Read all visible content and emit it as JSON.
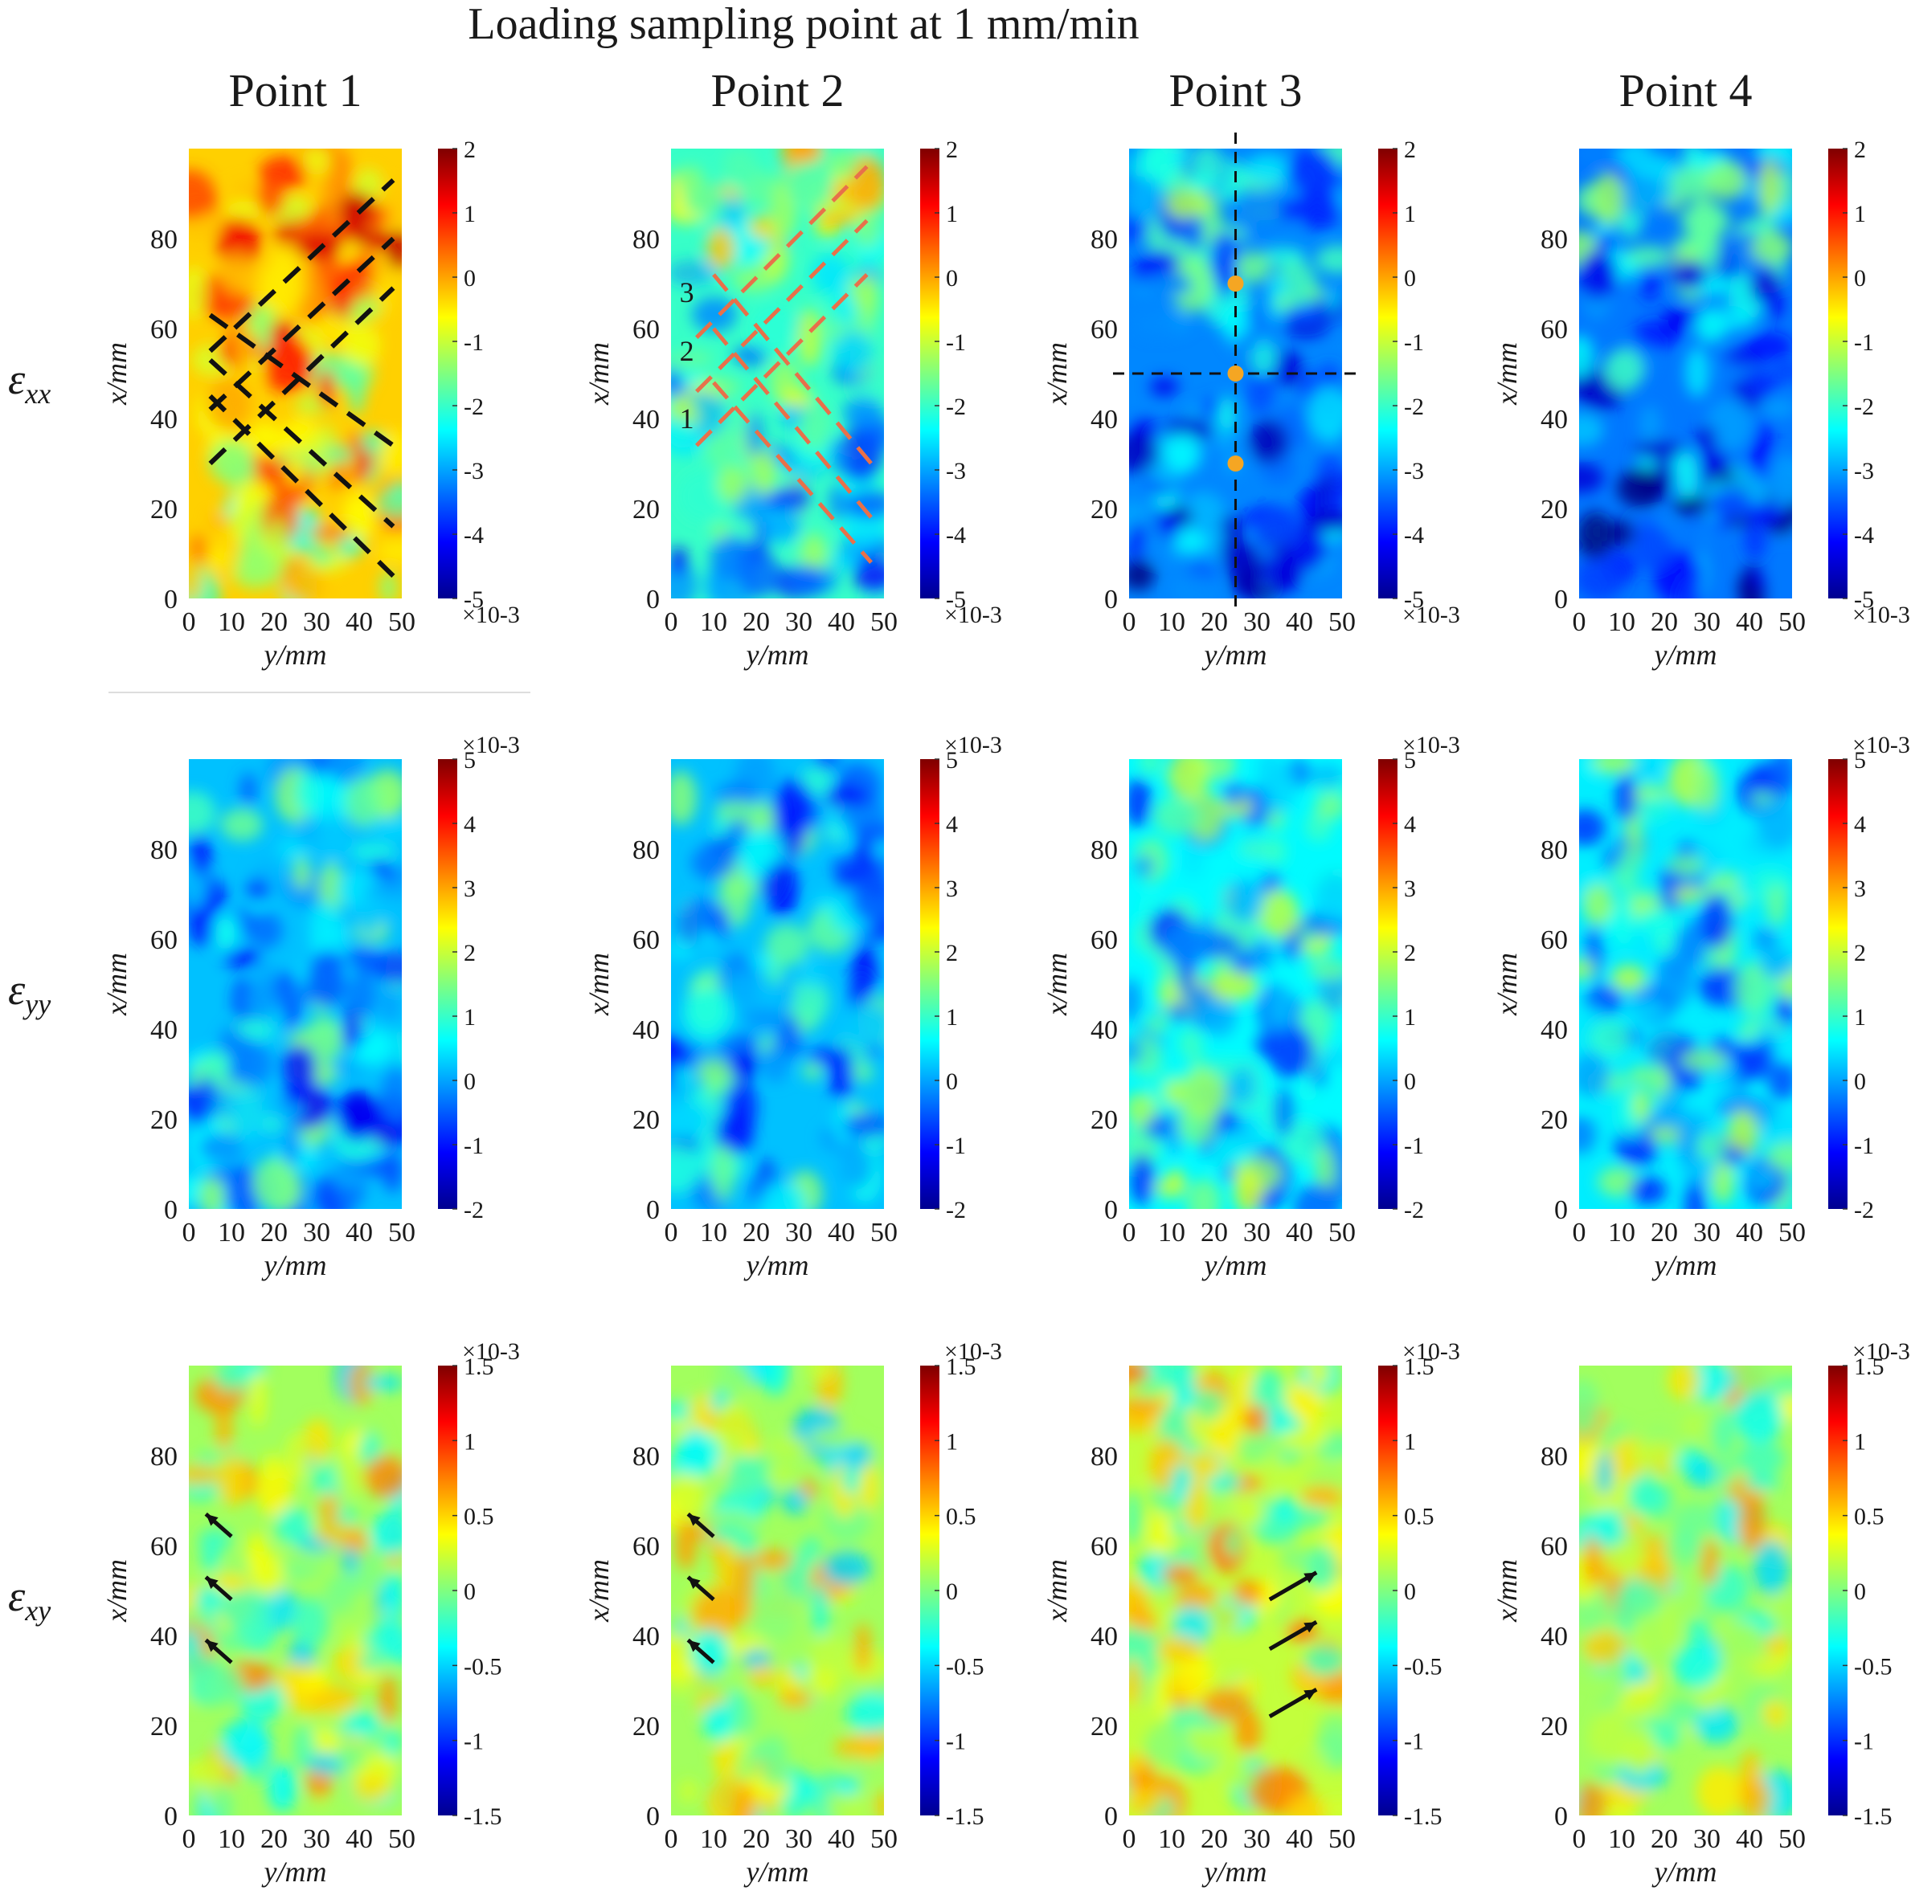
{
  "chart_data": {
    "type": "heatmap",
    "title": "Loading sampling point at 1 mm/min",
    "columns": [
      "Point 1",
      "Point 2",
      "Point 3",
      "Point 4"
    ],
    "xlabel": "y/mm",
    "ylabel": "x/mm",
    "x_ticks": [
      "0",
      "10",
      "20",
      "30",
      "40",
      "50"
    ],
    "y_ticks": [
      "0",
      "20",
      "40",
      "60",
      "80"
    ],
    "xlim": [
      0,
      50
    ],
    "ylim": [
      0,
      100
    ],
    "colorbar_scale": "×10-3",
    "rows": [
      {
        "label": "ε",
        "subscript": "xx",
        "colorbar_range": [
          -5,
          2
        ],
        "colorbar_ticks": [
          "2",
          "1",
          "0",
          "-1",
          "-2",
          "-3",
          "-4",
          "-5"
        ],
        "mean_strain": [
          -0.3,
          -2.0,
          -3.2,
          -3.3
        ]
      },
      {
        "label": "ε",
        "subscript": "yy",
        "colorbar_range": [
          -2,
          5
        ],
        "colorbar_ticks": [
          "5",
          "4",
          "3",
          "2",
          "1",
          "0",
          "-1",
          "-2"
        ],
        "mean_strain": [
          0.2,
          0.2,
          0.6,
          0.5
        ]
      },
      {
        "label": "ε",
        "subscript": "xy",
        "colorbar_range": [
          -1.5,
          1.5
        ],
        "colorbar_ticks": [
          "1.5",
          "1",
          "0.5",
          "0",
          "-0.5",
          "-1",
          "-1.5"
        ],
        "mean_strain": [
          0.1,
          0.1,
          0.2,
          0.1
        ]
      }
    ],
    "annotations": {
      "point2_band_labels": [
        "1",
        "2",
        "3"
      ],
      "point3_sample_points": [
        {
          "y_mm": 25,
          "x_mm": 70
        },
        {
          "y_mm": 25,
          "x_mm": 50
        },
        {
          "y_mm": 25,
          "x_mm": 30
        }
      ]
    }
  }
}
